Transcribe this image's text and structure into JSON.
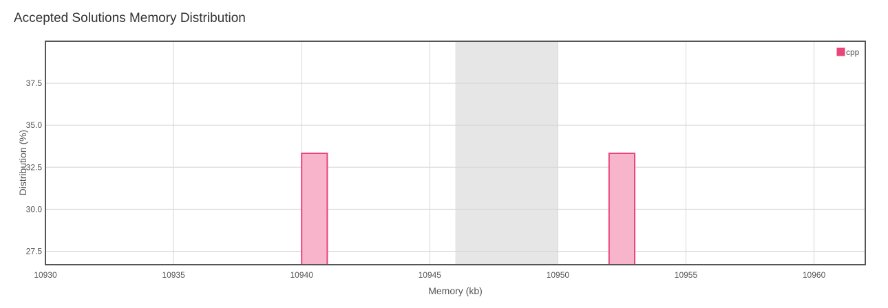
{
  "chart_data": {
    "type": "bar",
    "title": "Accepted Solutions Memory Distribution",
    "xlabel": "Memory (kb)",
    "ylabel": "Distribution (%)",
    "xlim": [
      10930,
      10962
    ],
    "ylim": [
      26.7,
      40.0
    ],
    "x_ticks": [
      "10930",
      "10935",
      "10940",
      "10945",
      "10950",
      "10955",
      "10960"
    ],
    "y_ticks": [
      "27.5",
      "30.0",
      "32.5",
      "35.0",
      "37.5"
    ],
    "highlight_range": [
      10946,
      10950
    ],
    "legend_position": "top-right",
    "grid": true,
    "series": [
      {
        "name": "cpp",
        "color": "#e8457a",
        "fill": "#f8b4cb",
        "bars": [
          {
            "x0": 10940,
            "x1": 10941,
            "value": 33.33
          },
          {
            "x0": 10952,
            "x1": 10953,
            "value": 33.33
          }
        ]
      }
    ]
  }
}
